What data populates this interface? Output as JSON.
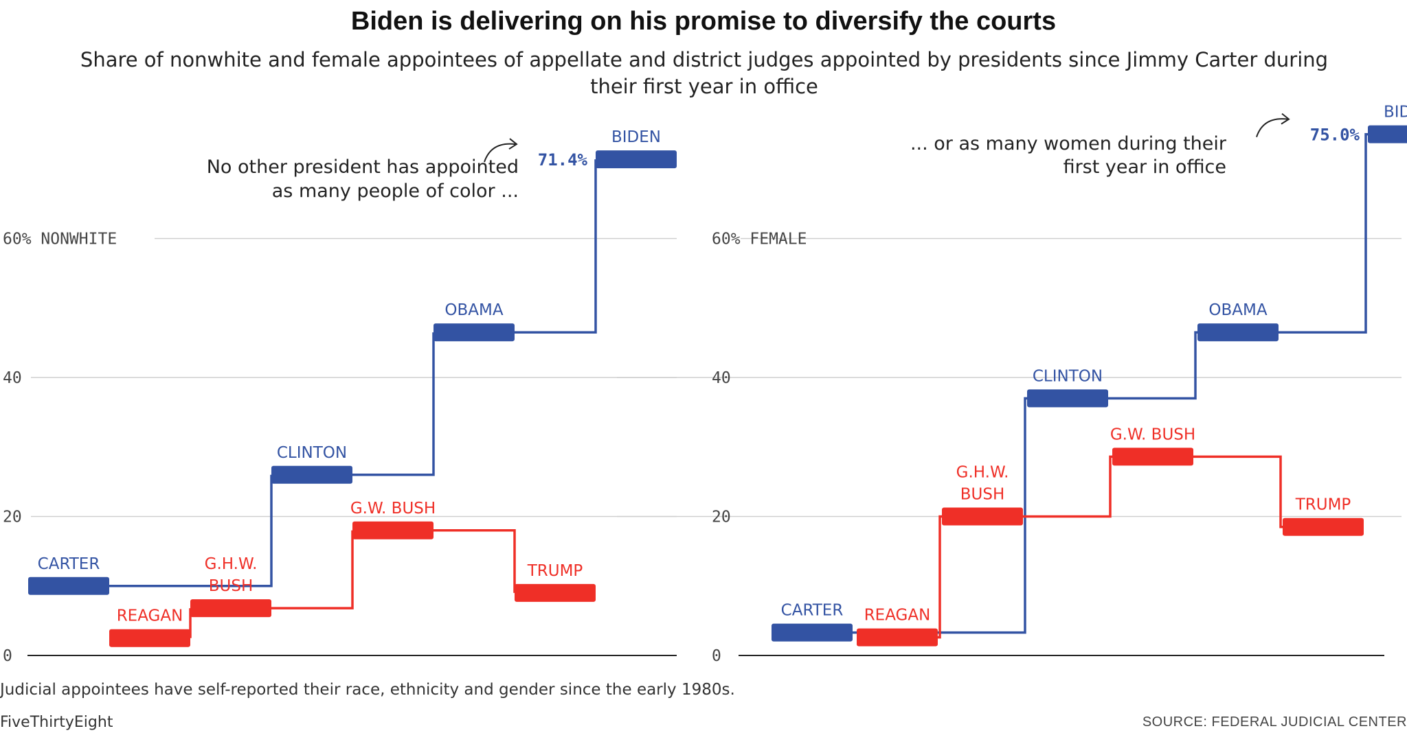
{
  "title": "Biden is delivering on his promise to diversify the courts",
  "subtitle": "Share of nonwhite and female appointees of appellate and district judges appointed by presidents since Jimmy Carter during their first year in office",
  "footnote": "Judicial appointees have self-reported their race, ethnicity and gender since the early 1980s.",
  "credit": "FiveThirtyEight",
  "source": "SOURCE: FEDERAL JUDICIAL CENTER",
  "colors": {
    "democrat": "#3353a3",
    "republican": "#ef2f27",
    "grid": "#cfcfcf",
    "axis": "#222222"
  },
  "chart_data": [
    {
      "type": "line",
      "step": true,
      "ylabel": "NONWHITE",
      "yticks": [
        {
          "value": 0,
          "label": "0"
        },
        {
          "value": 20,
          "label": "20"
        },
        {
          "value": 40,
          "label": "40"
        },
        {
          "value": 60,
          "label": "60% NONWHITE"
        }
      ],
      "ylim": [
        0,
        75
      ],
      "categories": [
        "CARTER",
        "REAGAN",
        "G.H.W. BUSH",
        "CLINTON",
        "G.W. BUSH",
        "OBAMA",
        "TRUMP",
        "BIDEN"
      ],
      "series": [
        {
          "party": "democrat",
          "points": [
            {
              "president": "CARTER",
              "value": 10
            },
            {
              "president": "CLINTON",
              "value": 26
            },
            {
              "president": "OBAMA",
              "value": 46.5
            },
            {
              "president": "BIDEN",
              "value": 71.4
            }
          ]
        },
        {
          "party": "republican",
          "points": [
            {
              "president": "REAGAN",
              "value": 2.5
            },
            {
              "president": "G.H.W. BUSH",
              "value": 6.8
            },
            {
              "president": "G.W. BUSH",
              "value": 18
            },
            {
              "president": "TRUMP",
              "value": 9
            }
          ]
        }
      ],
      "value_label": {
        "president": "BIDEN",
        "text": "71.4%"
      },
      "annotation": [
        "No other president has appointed",
        "as many people of color ..."
      ]
    },
    {
      "type": "line",
      "step": true,
      "ylabel": "FEMALE",
      "yticks": [
        {
          "value": 0,
          "label": "0"
        },
        {
          "value": 20,
          "label": "20"
        },
        {
          "value": 40,
          "label": "40"
        },
        {
          "value": 60,
          "label": "60% FEMALE"
        }
      ],
      "ylim": [
        0,
        75
      ],
      "categories": [
        "CARTER",
        "REAGAN",
        "G.H.W. BUSH",
        "CLINTON",
        "G.W. BUSH",
        "OBAMA",
        "TRUMP",
        "BIDEN"
      ],
      "series": [
        {
          "party": "democrat",
          "points": [
            {
              "president": "CARTER",
              "value": 3.3
            },
            {
              "president": "CLINTON",
              "value": 37
            },
            {
              "president": "OBAMA",
              "value": 46.5
            },
            {
              "president": "BIDEN",
              "value": 75.0
            }
          ]
        },
        {
          "party": "republican",
          "points": [
            {
              "president": "REAGAN",
              "value": 2.6
            },
            {
              "president": "G.H.W. BUSH",
              "value": 20
            },
            {
              "president": "G.W. BUSH",
              "value": 28.6
            },
            {
              "president": "TRUMP",
              "value": 18.5
            }
          ]
        }
      ],
      "value_label": {
        "president": "BIDEN",
        "text": "75.0%"
      },
      "annotation": [
        "... or as many women during their",
        "first year in office"
      ]
    }
  ]
}
